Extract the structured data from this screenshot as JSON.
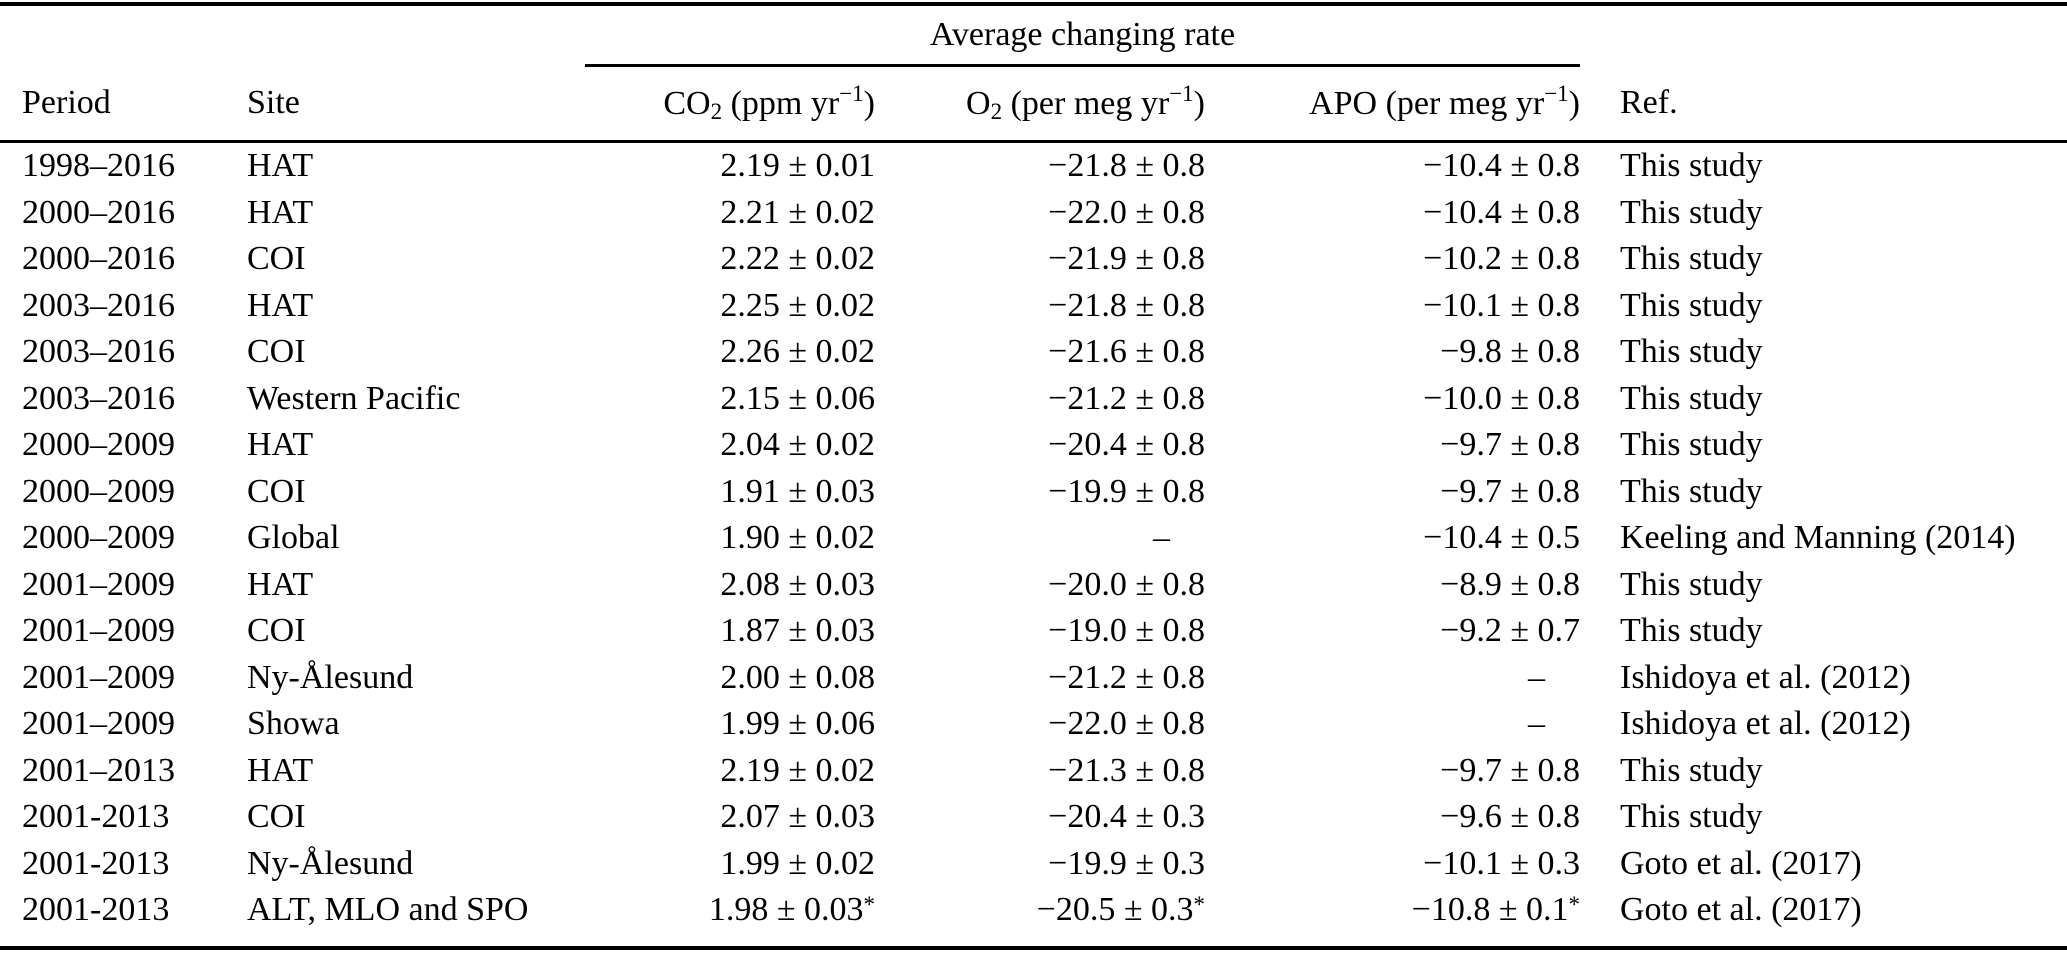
{
  "table": {
    "group_header": "Average changing rate",
    "columns": {
      "period": "Period",
      "site": "Site",
      "co2": {
        "base": "CO",
        "sub": "2",
        "rest": " (ppm yr",
        "sup": "−1",
        "close": ")"
      },
      "o2": {
        "base": "O",
        "sub": "2",
        "rest": " (per meg yr",
        "sup": "−1",
        "close": ")"
      },
      "apo": {
        "base": "APO",
        "rest": " (per meg yr",
        "sup": "−1",
        "close": ")"
      },
      "ref": "Ref."
    },
    "rows": [
      {
        "period": "1998–2016",
        "site": "HAT",
        "co2": "2.19 ± 0.01",
        "o2": "−21.8 ± 0.8",
        "apo": "−10.4 ± 0.8",
        "ref": "This study"
      },
      {
        "period": "2000–2016",
        "site": "HAT",
        "co2": "2.21 ± 0.02",
        "o2": "−22.0 ± 0.8",
        "apo": "−10.4 ± 0.8",
        "ref": "This study"
      },
      {
        "period": "2000–2016",
        "site": "COI",
        "co2": "2.22 ± 0.02",
        "o2": "−21.9 ± 0.8",
        "apo": "−10.2 ± 0.8",
        "ref": "This study"
      },
      {
        "period": "2003–2016",
        "site": "HAT",
        "co2": "2.25 ± 0.02",
        "o2": "−21.8 ± 0.8",
        "apo": "−10.1 ± 0.8",
        "ref": "This study"
      },
      {
        "period": "2003–2016",
        "site": "COI",
        "co2": "2.26 ± 0.02",
        "o2": "−21.6 ± 0.8",
        "apo": "−9.8 ± 0.8",
        "ref": "This study"
      },
      {
        "period": "2003–2016",
        "site": "Western Pacific",
        "co2": "2.15 ± 0.06",
        "o2": "−21.2 ± 0.8",
        "apo": "−10.0 ± 0.8",
        "ref": "This study"
      },
      {
        "period": "2000–2009",
        "site": "HAT",
        "co2": "2.04 ± 0.02",
        "o2": "−20.4 ± 0.8",
        "apo": "−9.7 ± 0.8",
        "ref": "This study"
      },
      {
        "period": "2000–2009",
        "site": "COI",
        "co2": "1.91 ± 0.03",
        "o2": "−19.9 ± 0.8",
        "apo": "−9.7 ± 0.8",
        "ref": "This study"
      },
      {
        "period": "2000–2009",
        "site": "Global",
        "co2": "1.90 ± 0.02",
        "o2": "–",
        "apo": "−10.4 ± 0.5",
        "ref": "Keeling and Manning (2014)"
      },
      {
        "period": "2001–2009",
        "site": "HAT",
        "co2": "2.08 ± 0.03",
        "o2": "−20.0 ± 0.8",
        "apo": "−8.9 ± 0.8",
        "ref": "This study"
      },
      {
        "period": "2001–2009",
        "site": "COI",
        "co2": "1.87 ± 0.03",
        "o2": "−19.0 ± 0.8",
        "apo": "−9.2 ± 0.7",
        "ref": "This study"
      },
      {
        "period": "2001–2009",
        "site": "Ny-Ålesund",
        "co2": "2.00 ± 0.08",
        "o2": "−21.2 ± 0.8",
        "apo": "–",
        "ref": "Ishidoya et al. (2012)"
      },
      {
        "period": "2001–2009",
        "site": "Showa",
        "co2": "1.99 ± 0.06",
        "o2": "−22.0 ± 0.8",
        "apo": "–",
        "ref": "Ishidoya et al. (2012)"
      },
      {
        "period": "2001–2013",
        "site": "HAT",
        "co2": "2.19 ± 0.02",
        "o2": "−21.3 ± 0.8",
        "apo": "−9.7 ± 0.8",
        "ref": "This study"
      },
      {
        "period": "2001-2013",
        "site": "COI",
        "co2": "2.07 ± 0.03",
        "o2": "−20.4 ± 0.3",
        "apo": "−9.6 ± 0.8",
        "ref": "This study"
      },
      {
        "period": "2001-2013",
        "site": "Ny-Ålesund",
        "co2": "1.99 ± 0.02",
        "o2": "−19.9 ± 0.3",
        "apo": "−10.1 ± 0.3",
        "ref": "Goto et al. (2017)"
      },
      {
        "period": "2001-2013",
        "site": "ALT, MLO and SPO",
        "co2": "1.98 ± 0.03*",
        "o2": "−20.5 ± 0.3*",
        "apo": "−10.8 ± 0.1*",
        "ref": "Goto et al. (2017)"
      }
    ]
  }
}
